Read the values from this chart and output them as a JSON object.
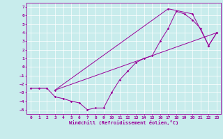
{
  "xlabel": "Windchill (Refroidissement éolien,°C)",
  "bg_color": "#c8ecec",
  "line_color": "#990099",
  "xlim": [
    -0.5,
    23.5
  ],
  "ylim": [
    -5.5,
    7.5
  ],
  "xticks": [
    0,
    1,
    2,
    3,
    4,
    5,
    6,
    7,
    8,
    9,
    10,
    11,
    12,
    13,
    14,
    15,
    16,
    17,
    18,
    19,
    20,
    21,
    22,
    23
  ],
  "yticks": [
    -5,
    -4,
    -3,
    -2,
    -1,
    0,
    1,
    2,
    3,
    4,
    5,
    6,
    7
  ],
  "series1": {
    "x": [
      0,
      1,
      2,
      3,
      4,
      5,
      6,
      7,
      8,
      9,
      10,
      11,
      12,
      13,
      14,
      15,
      16,
      17,
      18,
      19,
      20,
      21,
      22,
      23
    ],
    "y": [
      -2.5,
      -2.5,
      -2.5,
      -3.5,
      -3.7,
      -4.0,
      -4.2,
      -5.0,
      -4.8,
      -4.8,
      -3.0,
      -1.5,
      -0.5,
      0.5,
      1.0,
      1.3,
      3.0,
      4.5,
      6.5,
      6.2,
      5.5,
      4.5,
      2.5,
      4.0
    ]
  },
  "series2": {
    "x": [
      3,
      23
    ],
    "y": [
      -2.7,
      4.0
    ]
  },
  "series3": {
    "x": [
      3,
      17,
      20,
      22,
      23
    ],
    "y": [
      -2.7,
      6.8,
      6.2,
      2.5,
      4.0
    ]
  }
}
